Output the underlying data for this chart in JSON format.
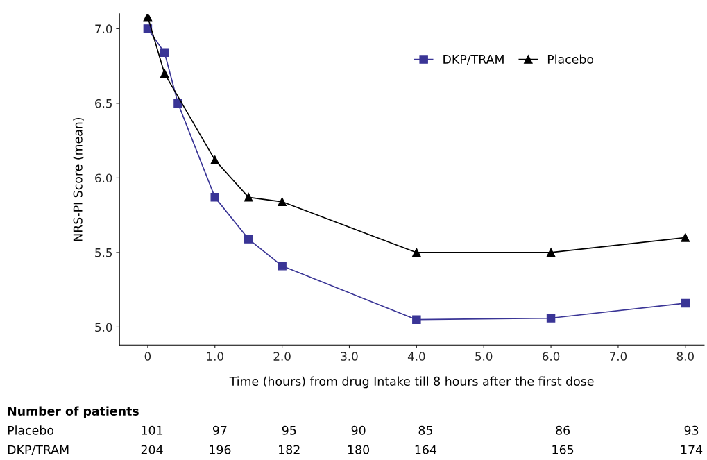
{
  "chart_data": {
    "type": "line",
    "xlabel": "Time (hours) from drug Intake till 8 hours after the first dose",
    "ylabel": "NRS-PI Score (mean)",
    "xlim": [
      -0.42,
      8.28
    ],
    "ylim": [
      4.88,
      7.1
    ],
    "xticks": [
      0,
      {
        "value": 1,
        "label": "1.0"
      },
      {
        "value": 2,
        "label": "2.0"
      },
      {
        "value": 3,
        "label": "3.0"
      },
      {
        "value": 4,
        "label": "4.0"
      },
      {
        "value": 5,
        "label": "5.0"
      },
      {
        "value": 6,
        "label": "6.0"
      },
      {
        "value": 7,
        "label": "7.0"
      },
      {
        "value": 8,
        "label": "8.0"
      }
    ],
    "yticks": [
      {
        "value": 5,
        "label": "5.0"
      },
      5.5,
      {
        "value": 6,
        "label": "6.0"
      },
      6.5,
      {
        "value": 7,
        "label": "7.0"
      }
    ],
    "grid": false,
    "legend": "top right",
    "line_style": "solid",
    "series": [
      {
        "name": "DKP/TRAM",
        "color": "#3a3596",
        "marker": "square",
        "x": [
          0,
          0.25,
          0.45,
          1,
          1.5,
          2,
          4,
          6,
          8
        ],
        "values": [
          7.0,
          6.84,
          6.5,
          5.87,
          5.59,
          5.41,
          5.05,
          5.06,
          5.16
        ]
      },
      {
        "name": "Placebo",
        "color": "#000000",
        "marker": "triangle",
        "x": [
          0,
          0.25,
          1,
          1.5,
          2,
          4,
          6,
          8
        ],
        "values": [
          7.08,
          6.7,
          6.12,
          5.87,
          5.84,
          5.5,
          5.5,
          5.6
        ]
      }
    ],
    "annotations": [
      "Number of patients",
      "Placebo",
      "101",
      "97",
      "95",
      "90",
      "85",
      "86",
      "93",
      "DKP/TRAM",
      "204",
      "196",
      "182",
      "180",
      "164",
      "165",
      "174"
    ]
  }
}
